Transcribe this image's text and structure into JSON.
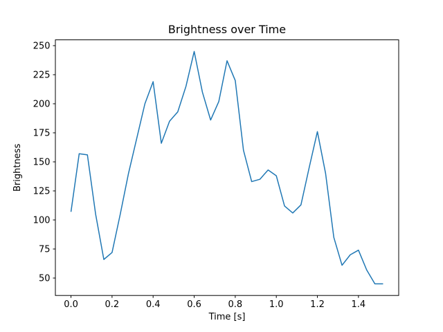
{
  "figure": {
    "background": "#ffffff"
  },
  "chart_data": {
    "type": "line",
    "title": "Brightness over Time",
    "xlabel": "Time [s]",
    "ylabel": "Brightness",
    "x": [
      0.0,
      0.04,
      0.08,
      0.12,
      0.16,
      0.2,
      0.24,
      0.28,
      0.32,
      0.36,
      0.4,
      0.44,
      0.48,
      0.52,
      0.56,
      0.6,
      0.64,
      0.68,
      0.72,
      0.76,
      0.8,
      0.84,
      0.88,
      0.92,
      0.96,
      1.0,
      1.04,
      1.08,
      1.12,
      1.16,
      1.2,
      1.24,
      1.28,
      1.32,
      1.36,
      1.4,
      1.44,
      1.48,
      1.52
    ],
    "y": [
      107,
      157,
      156,
      105,
      66,
      72,
      105,
      140,
      170,
      200,
      219,
      166,
      185,
      193,
      215,
      245,
      210,
      186,
      202,
      237,
      220,
      160,
      133,
      135,
      143,
      138,
      112,
      106,
      113,
      145,
      176,
      140,
      85,
      61,
      70,
      74,
      57,
      45,
      45
    ],
    "xlim": [
      -0.076,
      1.596
    ],
    "ylim": [
      35,
      255
    ],
    "xticks": [
      0.0,
      0.2,
      0.4,
      0.6,
      0.8,
      1.0,
      1.2,
      1.4
    ],
    "xtick_labels": [
      "0.0",
      "0.2",
      "0.4",
      "0.6",
      "0.8",
      "1.0",
      "1.2",
      "1.4"
    ],
    "yticks": [
      50,
      75,
      100,
      125,
      150,
      175,
      200,
      225,
      250
    ],
    "ytick_labels": [
      "50",
      "75",
      "100",
      "125",
      "150",
      "175",
      "200",
      "225",
      "250"
    ],
    "line_color": "#1f77b4",
    "line_width": 1.5,
    "axis_color": "#000000",
    "grid": false,
    "legend": null
  }
}
